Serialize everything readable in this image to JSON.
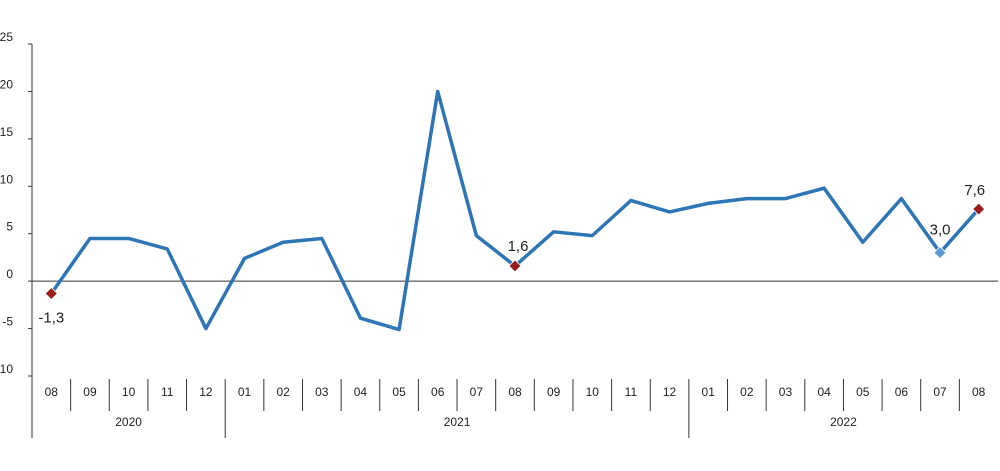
{
  "chart_data": {
    "type": "line",
    "ylim": [
      -10,
      25
    ],
    "y_ticks": [
      "-10",
      "-5",
      "0",
      "5",
      "10",
      "15",
      "20",
      "25"
    ],
    "grid": false,
    "categories": [
      "08",
      "09",
      "10",
      "11",
      "12",
      "01",
      "02",
      "03",
      "04",
      "05",
      "06",
      "07",
      "08",
      "09",
      "10",
      "11",
      "12",
      "01",
      "02",
      "03",
      "04",
      "05",
      "06",
      "07",
      "08"
    ],
    "years": [
      {
        "label": "2020",
        "start": 0,
        "end": 4
      },
      {
        "label": "2021",
        "start": 5,
        "end": 16
      },
      {
        "label": "2022",
        "start": 17,
        "end": 24
      }
    ],
    "series": [
      {
        "values": [
          -1.3,
          4.5,
          4.5,
          3.4,
          -5.0,
          2.4,
          4.1,
          4.5,
          -3.9,
          -5.1,
          20.0,
          4.8,
          1.6,
          5.2,
          4.8,
          8.5,
          7.3,
          8.2,
          8.7,
          8.7,
          9.8,
          4.1,
          8.7,
          3.0,
          7.6
        ],
        "color": "#2e75b6"
      }
    ],
    "annotations": [
      {
        "index": 0,
        "label": "-1,3",
        "marker_color": "#9b1c1c"
      },
      {
        "index": 12,
        "label": "1,6",
        "marker_color": "#9b1c1c"
      },
      {
        "index": 23,
        "label": "3,0",
        "marker_color": "#5b9bd5"
      },
      {
        "index": 24,
        "label": "7,6",
        "marker_color": "#9b1c1c"
      }
    ]
  }
}
